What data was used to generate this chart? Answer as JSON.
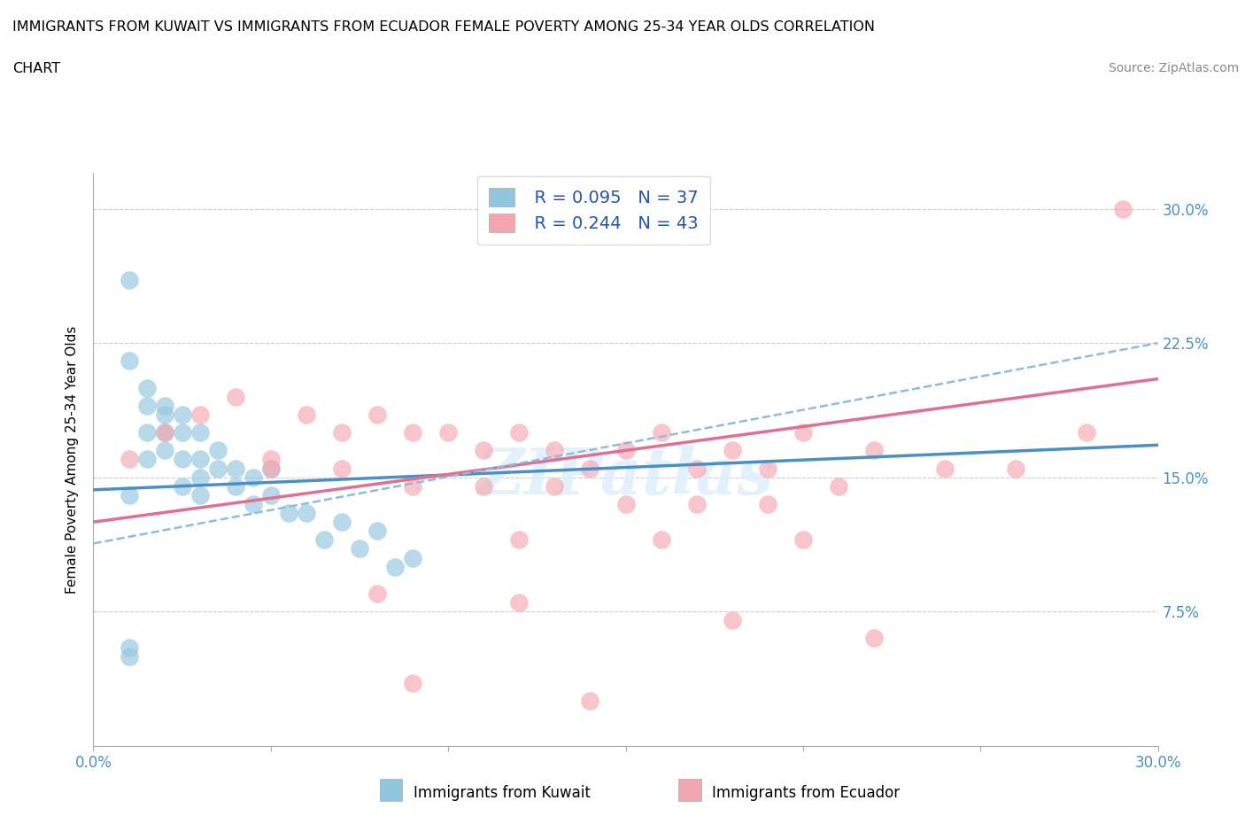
{
  "title_line1": "IMMIGRANTS FROM KUWAIT VS IMMIGRANTS FROM ECUADOR FEMALE POVERTY AMONG 25-34 YEAR OLDS CORRELATION",
  "title_line2": "CHART",
  "source": "Source: ZipAtlas.com",
  "ylabel": "Female Poverty Among 25-34 Year Olds",
  "xlim": [
    0.0,
    0.3
  ],
  "ylim": [
    0.0,
    0.32
  ],
  "xtick_positions": [
    0.0,
    0.05,
    0.1,
    0.15,
    0.2,
    0.25,
    0.3
  ],
  "xticklabels": [
    "0.0%",
    "",
    "",
    "",
    "",
    "",
    "30.0%"
  ],
  "ytick_positions": [
    0.075,
    0.15,
    0.225,
    0.3
  ],
  "ytick_labels": [
    "7.5%",
    "15.0%",
    "22.5%",
    "30.0%"
  ],
  "kuwait_color": "#92c5de",
  "ecuador_color": "#f4a6b0",
  "kuwait_line_color": "#4a90c4",
  "ecuador_line_color": "#e07090",
  "dashed_line_color": "#90bcd8",
  "legend_text_color": "#2255aa",
  "legend_R1": "R = 0.095",
  "legend_N1": "N = 37",
  "legend_R2": "R = 0.244",
  "legend_N2": "N = 43",
  "watermark": "ZIPatlas",
  "kuwait_scatter_x": [
    0.01,
    0.01,
    0.01,
    0.015,
    0.015,
    0.015,
    0.015,
    0.02,
    0.02,
    0.02,
    0.02,
    0.025,
    0.025,
    0.025,
    0.025,
    0.03,
    0.03,
    0.03,
    0.03,
    0.035,
    0.035,
    0.04,
    0.04,
    0.045,
    0.045,
    0.05,
    0.05,
    0.055,
    0.06,
    0.065,
    0.07,
    0.075,
    0.08,
    0.085,
    0.09,
    0.01,
    0.01
  ],
  "kuwait_scatter_y": [
    0.26,
    0.215,
    0.14,
    0.2,
    0.19,
    0.175,
    0.16,
    0.19,
    0.185,
    0.175,
    0.165,
    0.185,
    0.175,
    0.16,
    0.145,
    0.175,
    0.16,
    0.15,
    0.14,
    0.165,
    0.155,
    0.155,
    0.145,
    0.15,
    0.135,
    0.155,
    0.14,
    0.13,
    0.13,
    0.115,
    0.125,
    0.11,
    0.12,
    0.1,
    0.105,
    0.055,
    0.05
  ],
  "ecuador_scatter_x": [
    0.01,
    0.02,
    0.03,
    0.04,
    0.05,
    0.06,
    0.07,
    0.08,
    0.09,
    0.1,
    0.11,
    0.12,
    0.13,
    0.14,
    0.15,
    0.16,
    0.17,
    0.18,
    0.19,
    0.2,
    0.22,
    0.24,
    0.26,
    0.28,
    0.29,
    0.05,
    0.07,
    0.09,
    0.11,
    0.13,
    0.15,
    0.17,
    0.19,
    0.21,
    0.12,
    0.16,
    0.2,
    0.08,
    0.12,
    0.18,
    0.22,
    0.09,
    0.14
  ],
  "ecuador_scatter_y": [
    0.16,
    0.175,
    0.185,
    0.195,
    0.16,
    0.185,
    0.175,
    0.185,
    0.175,
    0.175,
    0.165,
    0.175,
    0.165,
    0.155,
    0.165,
    0.175,
    0.155,
    0.165,
    0.155,
    0.175,
    0.165,
    0.155,
    0.155,
    0.175,
    0.3,
    0.155,
    0.155,
    0.145,
    0.145,
    0.145,
    0.135,
    0.135,
    0.135,
    0.145,
    0.115,
    0.115,
    0.115,
    0.085,
    0.08,
    0.07,
    0.06,
    0.035,
    0.025
  ],
  "kuwait_trend_x": [
    0.0,
    0.3
  ],
  "kuwait_trend_y": [
    0.143,
    0.168
  ],
  "ecuador_trend_x": [
    0.0,
    0.3
  ],
  "ecuador_trend_y": [
    0.125,
    0.205
  ],
  "dashed_trend_x": [
    0.0,
    0.3
  ],
  "dashed_trend_y": [
    0.113,
    0.225
  ],
  "background_color": "#ffffff",
  "grid_color": "#cccccc"
}
